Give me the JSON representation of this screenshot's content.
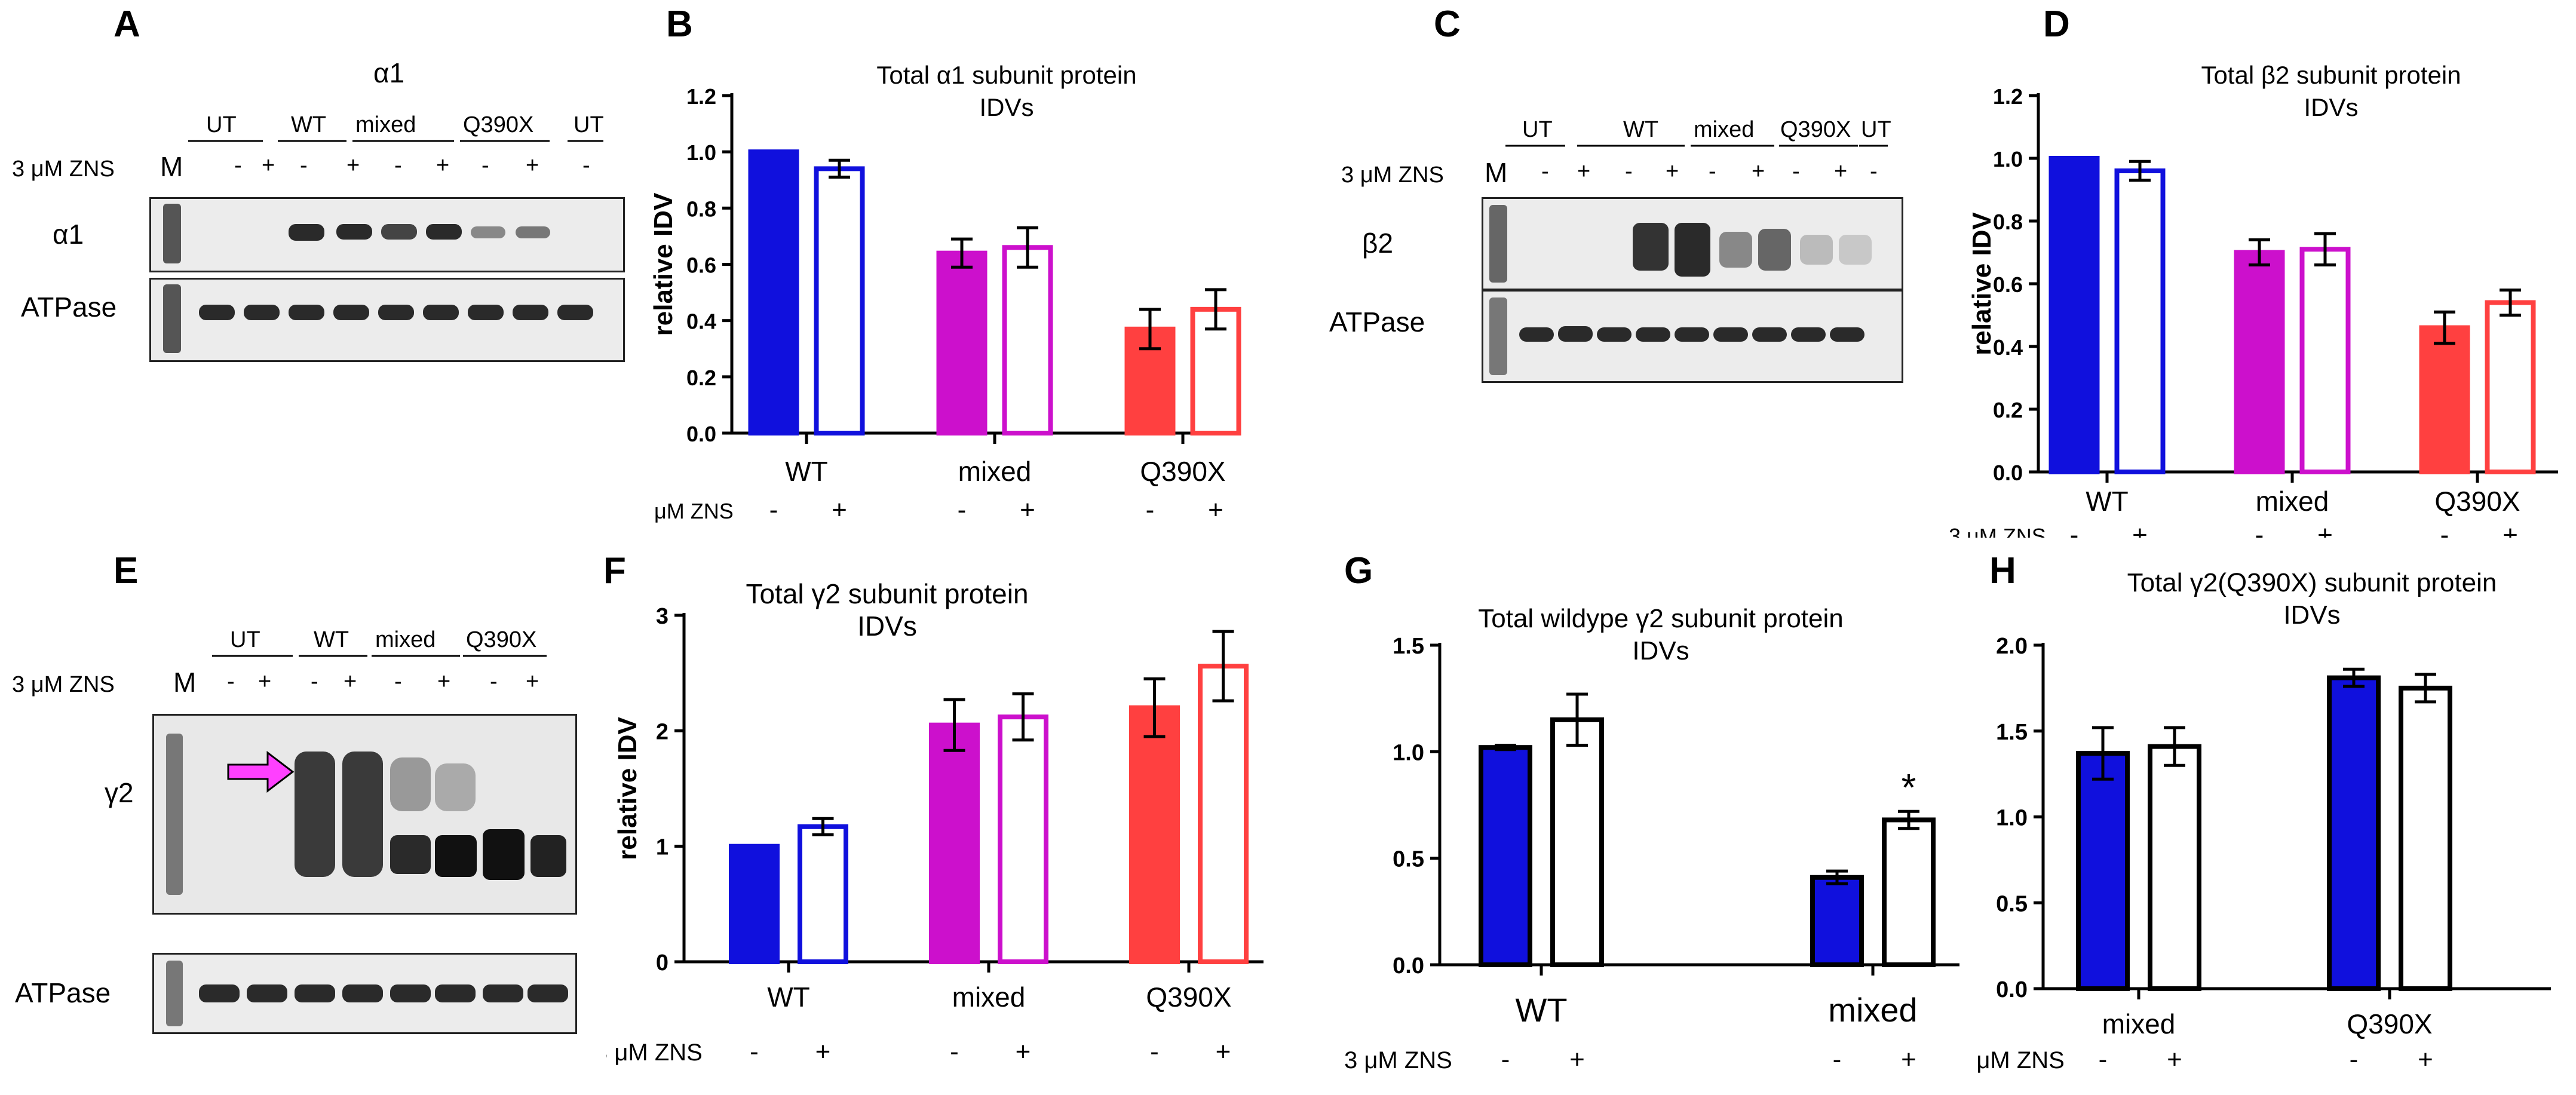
{
  "letters": {
    "A": "A",
    "B": "B",
    "C": "C",
    "D": "D",
    "E": "E",
    "F": "F",
    "G": "G",
    "H": "H"
  },
  "common": {
    "zns_label": "3 μM ZNS",
    "minus": "-",
    "plus": "+",
    "marker": "M",
    "atpase": "ATPase"
  },
  "blotA": {
    "title": "α1",
    "row_label": "α1",
    "groups": [
      "UT",
      "WT",
      "mixed",
      "Q390X",
      "UT"
    ]
  },
  "blotC": {
    "row_label": "β2",
    "groups": [
      "UT",
      "WT",
      "mixed",
      "Q390X",
      "UT"
    ]
  },
  "blotE": {
    "row_label": "γ2",
    "groups": [
      "UT",
      "WT",
      "mixed",
      "Q390X"
    ],
    "arrow_color": "#ff40ff"
  },
  "colors": {
    "blue": "#1010dd",
    "magenta": "#cc10cc",
    "red": "#ff4040",
    "black": "#000000"
  },
  "chart_data": [
    {
      "id": "B",
      "type": "bar",
      "title": "Total α1 subunit protein IDVs",
      "title_lines": [
        "Total α1 subunit protein",
        "IDVs"
      ],
      "ylabel": "relative IDV",
      "xlabel": "",
      "ylim": [
        0,
        1.2
      ],
      "yticks": [
        "0.0",
        "0.2",
        "0.4",
        "0.6",
        "0.8",
        "1.0",
        "1.2"
      ],
      "categories": [
        "WT",
        "mixed",
        "Q390X"
      ],
      "series": [
        {
          "values": [
            1.0,
            0.64,
            0.37
          ],
          "errors": [
            0.0,
            0.05,
            0.07
          ],
          "fill": "solid"
        },
        {
          "values": [
            0.94,
            0.66,
            0.44
          ],
          "errors": [
            0.03,
            0.07,
            0.07
          ],
          "fill": "open"
        }
      ],
      "zns_row": [
        "-",
        "+",
        "-",
        "+",
        "-",
        "+"
      ]
    },
    {
      "id": "D",
      "type": "bar",
      "title": "Total β2 subunit protein IDVs",
      "title_lines": [
        "Total β2 subunit protein",
        "IDVs"
      ],
      "ylabel": "relative IDV",
      "xlabel": "",
      "ylim": [
        0,
        1.2
      ],
      "yticks": [
        "0.0",
        "0.2",
        "0.4",
        "0.6",
        "0.8",
        "1.0",
        "1.2"
      ],
      "categories": [
        "WT",
        "mixed",
        "Q390X"
      ],
      "series": [
        {
          "values": [
            1.0,
            0.7,
            0.46
          ],
          "errors": [
            0.0,
            0.04,
            0.05
          ],
          "fill": "solid"
        },
        {
          "values": [
            0.96,
            0.71,
            0.54
          ],
          "errors": [
            0.03,
            0.05,
            0.04
          ],
          "fill": "open"
        }
      ],
      "zns_row": [
        "-",
        "+",
        "-",
        "+",
        "-",
        "+"
      ]
    },
    {
      "id": "F",
      "type": "bar",
      "title": "Total γ2 subunit protein IDVs",
      "title_lines": [
        "Total γ2  subunit protein",
        "IDVs"
      ],
      "ylabel": "relative IDV",
      "xlabel": "",
      "ylim": [
        0,
        3
      ],
      "yticks": [
        "0",
        "1",
        "2",
        "3"
      ],
      "categories": [
        "WT",
        "mixed",
        "Q390X"
      ],
      "series": [
        {
          "values": [
            1.0,
            2.05,
            2.2
          ],
          "errors": [
            0.0,
            0.22,
            0.25
          ],
          "fill": "solid"
        },
        {
          "values": [
            1.17,
            2.12,
            2.56
          ],
          "errors": [
            0.07,
            0.2,
            0.3
          ],
          "fill": "open"
        }
      ],
      "zns_row": [
        "-",
        "+",
        "-",
        "+",
        "-",
        "+"
      ]
    },
    {
      "id": "G",
      "type": "bar",
      "title": "Total wildype γ2 subunit protein IDVs",
      "title_lines": [
        "Total  wildype γ2 subunit protein",
        "IDVs"
      ],
      "ylabel": "",
      "xlabel": "",
      "ylim": [
        0,
        1.5
      ],
      "yticks": [
        "0.0",
        "0.5",
        "1.0",
        "1.5"
      ],
      "categories": [
        "WT",
        "mixed"
      ],
      "series": [
        {
          "values": [
            1.02,
            0.41
          ],
          "errors": [
            0.01,
            0.03
          ],
          "fill": "blue"
        },
        {
          "values": [
            1.15,
            0.68
          ],
          "errors": [
            0.12,
            0.04
          ],
          "fill": "white"
        }
      ],
      "annotations": [
        {
          "category": "mixed",
          "series": 1,
          "text": "*"
        }
      ],
      "zns_row": [
        "-",
        "+",
        "-",
        "+"
      ]
    },
    {
      "id": "H",
      "type": "bar",
      "title": "Total γ2(Q390X) subunit protein IDVs",
      "title_lines": [
        "Total γ2(Q390X) subunit protein",
        "IDVs"
      ],
      "ylabel": "",
      "xlabel": "",
      "ylim": [
        0,
        2.0
      ],
      "yticks": [
        "0.0",
        "0.5",
        "1.0",
        "1.5",
        "2.0"
      ],
      "categories": [
        "mixed",
        "Q390X"
      ],
      "series": [
        {
          "values": [
            1.37,
            1.81
          ],
          "errors": [
            0.15,
            0.05
          ],
          "fill": "blue"
        },
        {
          "values": [
            1.41,
            1.75
          ],
          "errors": [
            0.11,
            0.08
          ],
          "fill": "white"
        }
      ],
      "zns_row": [
        "-",
        "+",
        "-",
        "+"
      ]
    }
  ]
}
